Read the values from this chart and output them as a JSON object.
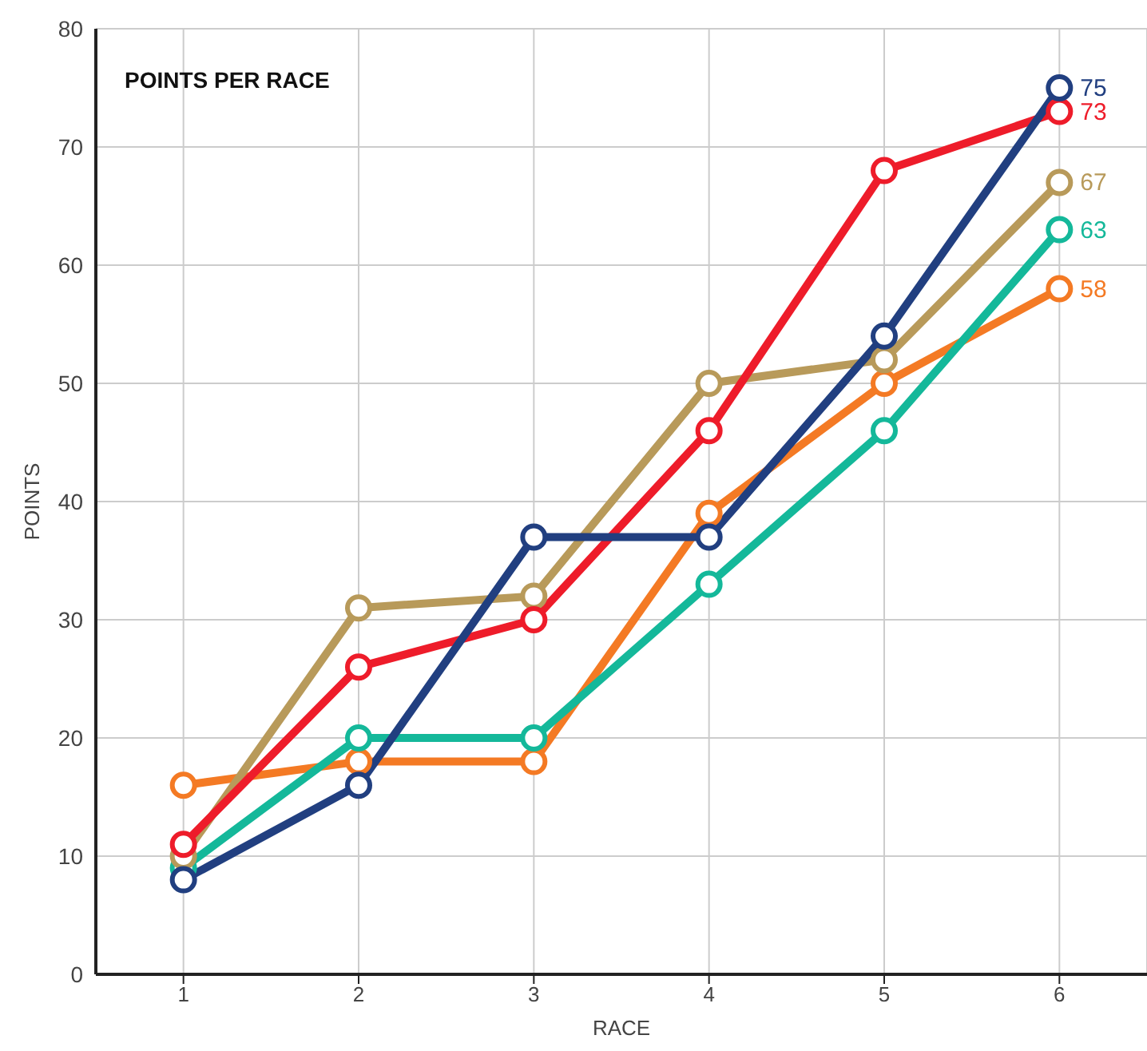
{
  "chart_data": {
    "type": "line",
    "title": "POINTS PER RACE",
    "xlabel": "RACE",
    "ylabel": "POINTS",
    "x": [
      1,
      2,
      3,
      4,
      5,
      6
    ],
    "xlim": [
      0.5,
      6.5
    ],
    "xticks": [
      1,
      2,
      3,
      4,
      5,
      6
    ],
    "ylim": [
      0,
      80
    ],
    "yticks": [
      0,
      10,
      20,
      30,
      40,
      50,
      60,
      70,
      80
    ],
    "grid": true,
    "marker": "circle",
    "line_style": "solid",
    "series": [
      {
        "color": "#f47a24",
        "values": [
          16,
          18,
          18,
          39,
          50,
          58
        ],
        "value_labels": [
          null,
          null,
          null,
          null,
          null,
          "58"
        ]
      },
      {
        "color": "#14b89a",
        "values": [
          9,
          20,
          20,
          33,
          46,
          63
        ],
        "value_labels": [
          null,
          null,
          null,
          null,
          null,
          "63"
        ]
      },
      {
        "color": "#b89a5a",
        "values": [
          10,
          31,
          32,
          50,
          52,
          67
        ],
        "value_labels": [
          null,
          null,
          null,
          null,
          null,
          "67"
        ]
      },
      {
        "color": "#ee1c2a",
        "values": [
          11,
          26,
          30,
          46,
          68,
          73
        ],
        "value_labels": [
          null,
          null,
          null,
          null,
          null,
          "73"
        ]
      },
      {
        "color": "#213f80",
        "values": [
          8,
          16,
          37,
          37,
          54,
          75
        ],
        "value_labels": [
          null,
          null,
          null,
          null,
          null,
          "75"
        ]
      }
    ]
  }
}
